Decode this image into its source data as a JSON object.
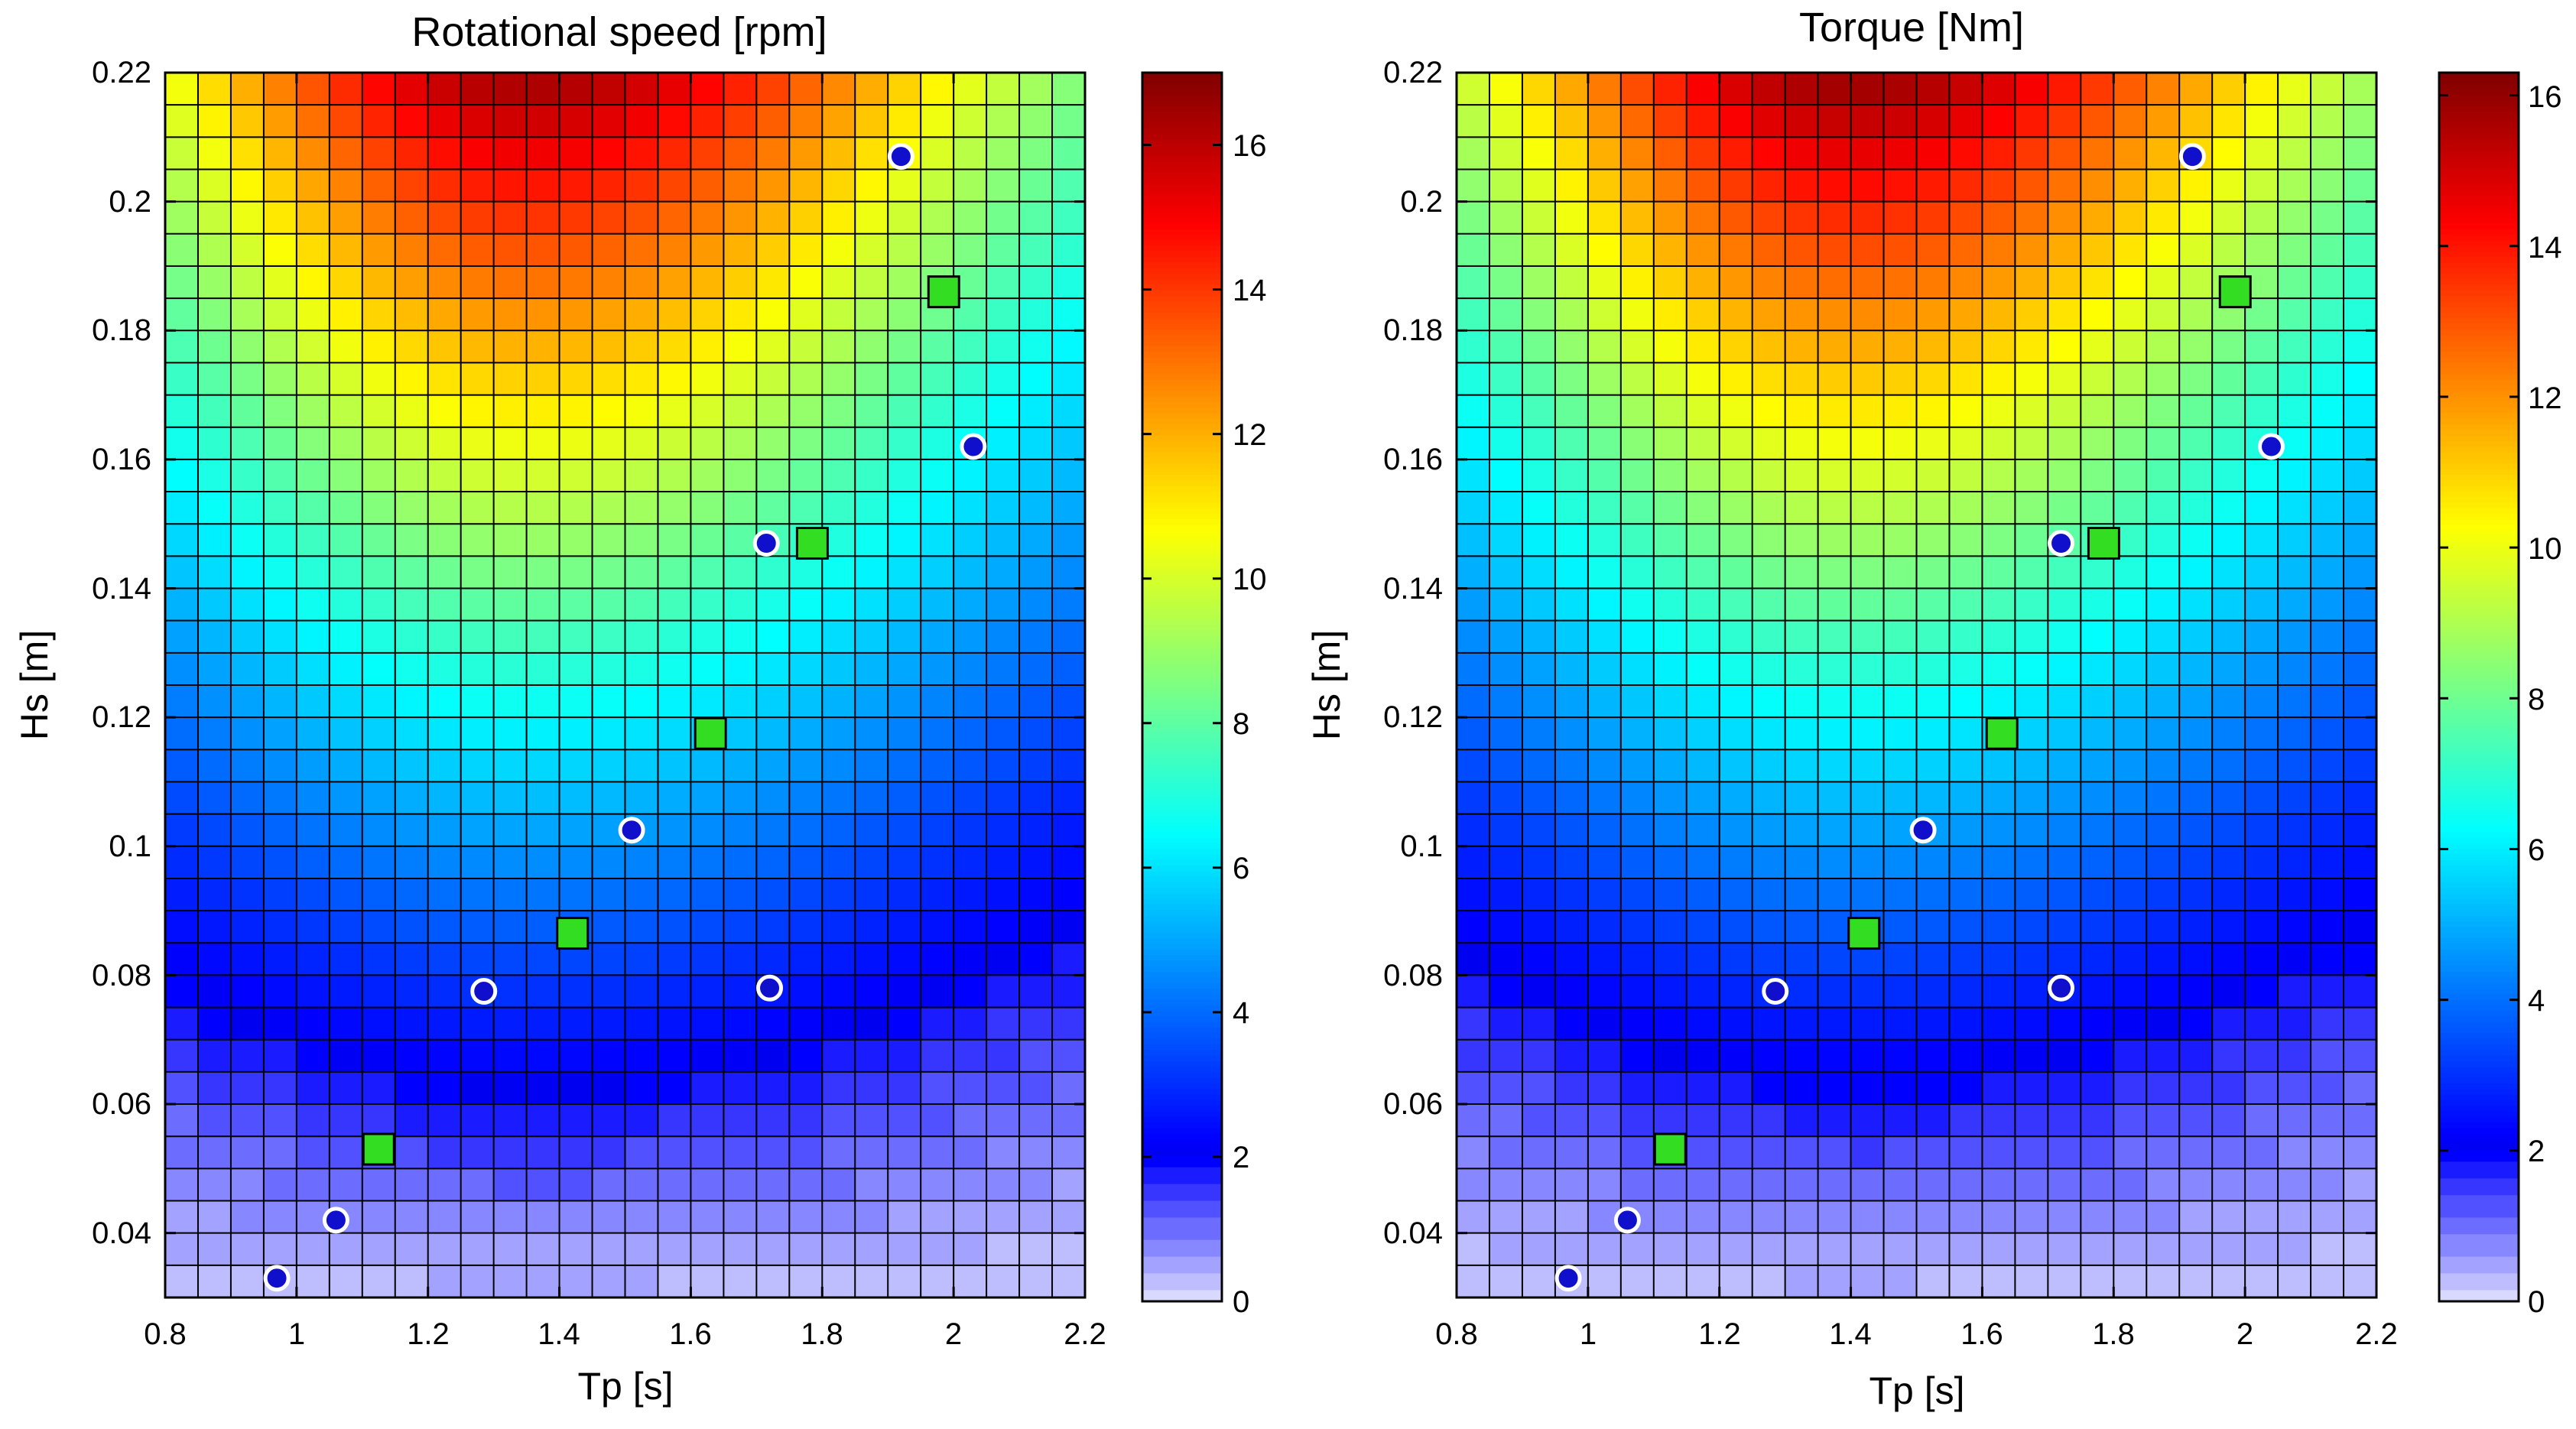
{
  "figure": {
    "panels": [
      {
        "title": "Rotational speed [rpm]",
        "xlabel": "Tp [s]",
        "ylabel": "Hs [m]",
        "colorbar_ticks": [
          "0",
          "2",
          "4",
          "6",
          "8",
          "10",
          "12",
          "14",
          "16"
        ]
      },
      {
        "title": "Torque [Nm]",
        "xlabel": "Tp [s]",
        "ylabel": "Hs [m]",
        "colorbar_ticks": [
          "0",
          "2",
          "4",
          "6",
          "8",
          "10",
          "12",
          "14",
          "16"
        ]
      }
    ],
    "x_tick_labels": [
      "0.8",
      "1",
      "1.2",
      "1.4",
      "1.6",
      "1.8",
      "2",
      "2.2"
    ],
    "y_tick_labels": [
      "0.04",
      "0.06",
      "0.08",
      "0.1",
      "0.12",
      "0.14",
      "0.16",
      "0.18",
      "0.2",
      "0.22"
    ]
  },
  "colors": {
    "grid_line": "#000000",
    "square_marker": "#33dd22",
    "circle_marker": "#1010cc",
    "circle_edge": "#ffffff"
  },
  "chart_data": [
    {
      "type": "heatmap",
      "title": "Rotational speed [rpm]",
      "xlabel": "Tp [s]",
      "ylabel": "Hs [m]",
      "xlim": [
        0.8,
        2.2
      ],
      "ylim": [
        0.03,
        0.22
      ],
      "x_ticks": [
        0.8,
        1.0,
        1.2,
        1.4,
        1.6,
        1.8,
        2.0,
        2.2
      ],
      "y_ticks": [
        0.04,
        0.06,
        0.08,
        0.1,
        0.12,
        0.14,
        0.16,
        0.18,
        0.2,
        0.22
      ],
      "grid": {
        "nx": 28,
        "ny": 38
      },
      "clim": [
        0,
        17
      ],
      "colorbar_ticks": [
        0,
        2,
        4,
        6,
        8,
        10,
        12,
        14,
        16
      ],
      "field_peak": 16.5,
      "field_peak_at": [
        1.35,
        0.22
      ],
      "square_markers": [
        [
          1.125,
          0.053
        ],
        [
          1.42,
          0.0865
        ],
        [
          1.63,
          0.1175
        ],
        [
          1.785,
          0.147
        ],
        [
          1.985,
          0.186
        ]
      ],
      "circle_markers": [
        [
          0.97,
          0.033
        ],
        [
          1.06,
          0.042
        ],
        [
          1.285,
          0.0775
        ],
        [
          1.72,
          0.078
        ],
        [
          1.51,
          0.1025
        ],
        [
          1.715,
          0.147
        ],
        [
          2.03,
          0.162
        ],
        [
          1.92,
          0.207
        ]
      ]
    },
    {
      "type": "heatmap",
      "title": "Torque [Nm]",
      "xlabel": "Tp [s]",
      "ylabel": "Hs [m]",
      "xlim": [
        0.8,
        2.2
      ],
      "ylim": [
        0.03,
        0.22
      ],
      "x_ticks": [
        0.8,
        1.0,
        1.2,
        1.4,
        1.6,
        1.8,
        2.0,
        2.2
      ],
      "y_ticks": [
        0.04,
        0.06,
        0.08,
        0.1,
        0.12,
        0.14,
        0.16,
        0.18,
        0.2,
        0.22
      ],
      "grid": {
        "nx": 28,
        "ny": 38
      },
      "clim": [
        0,
        16.3
      ],
      "colorbar_ticks": [
        0,
        2,
        4,
        6,
        8,
        10,
        12,
        14,
        16
      ],
      "field_peak": 16.0,
      "field_peak_at": [
        1.4,
        0.22
      ],
      "square_markers": [
        [
          1.125,
          0.053
        ],
        [
          1.42,
          0.0865
        ],
        [
          1.63,
          0.1175
        ],
        [
          1.785,
          0.147
        ],
        [
          1.985,
          0.186
        ]
      ],
      "circle_markers": [
        [
          0.97,
          0.033
        ],
        [
          1.06,
          0.042
        ],
        [
          1.285,
          0.0775
        ],
        [
          1.72,
          0.078
        ],
        [
          1.51,
          0.1025
        ],
        [
          1.72,
          0.147
        ],
        [
          2.04,
          0.162
        ],
        [
          1.92,
          0.207
        ]
      ]
    }
  ]
}
